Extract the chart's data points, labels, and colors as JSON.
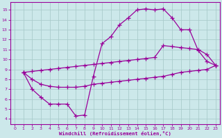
{
  "xlabel": "Windchill (Refroidissement éolien,°C)",
  "bg_color": "#cce8ea",
  "grid_color": "#aacccc",
  "line_color": "#990099",
  "xlim": [
    -0.5,
    23.5
  ],
  "ylim": [
    3.5,
    15.8
  ],
  "xticks": [
    0,
    1,
    2,
    3,
    4,
    5,
    6,
    7,
    8,
    9,
    10,
    11,
    12,
    13,
    14,
    15,
    16,
    17,
    18,
    19,
    20,
    21,
    22,
    23
  ],
  "yticks": [
    4,
    5,
    6,
    7,
    8,
    9,
    10,
    11,
    12,
    13,
    14,
    15
  ],
  "line1_x": [
    1,
    2,
    3,
    4,
    5,
    6,
    7,
    8,
    9,
    10,
    11,
    12,
    13,
    14,
    15,
    16,
    17,
    18,
    19,
    20,
    21,
    22,
    23
  ],
  "line1_y": [
    8.7,
    7.0,
    6.2,
    5.5,
    5.5,
    5.5,
    4.3,
    4.4,
    8.3,
    11.6,
    12.3,
    13.5,
    14.2,
    15.0,
    15.1,
    15.0,
    15.1,
    14.2,
    13.0,
    13.0,
    10.9,
    9.8,
    9.4
  ],
  "line2_x": [
    1,
    2,
    3,
    4,
    5,
    6,
    7,
    8,
    9,
    10,
    11,
    12,
    13,
    14,
    15,
    16,
    17,
    18,
    19,
    20,
    21,
    22,
    23
  ],
  "line2_y": [
    8.7,
    8.8,
    8.9,
    9.0,
    9.1,
    9.2,
    9.3,
    9.4,
    9.5,
    9.6,
    9.7,
    9.8,
    9.9,
    10.0,
    10.1,
    10.2,
    11.4,
    11.3,
    11.2,
    11.1,
    11.0,
    10.5,
    9.4
  ],
  "line3_x": [
    1,
    2,
    3,
    4,
    5,
    6,
    7,
    8,
    9,
    10,
    11,
    12,
    13,
    14,
    15,
    16,
    17,
    18,
    19,
    20,
    21,
    22,
    23
  ],
  "line3_y": [
    8.7,
    8.0,
    7.5,
    7.3,
    7.2,
    7.2,
    7.2,
    7.3,
    7.5,
    7.6,
    7.7,
    7.8,
    7.9,
    8.0,
    8.1,
    8.2,
    8.3,
    8.5,
    8.7,
    8.8,
    8.9,
    9.0,
    9.4
  ]
}
